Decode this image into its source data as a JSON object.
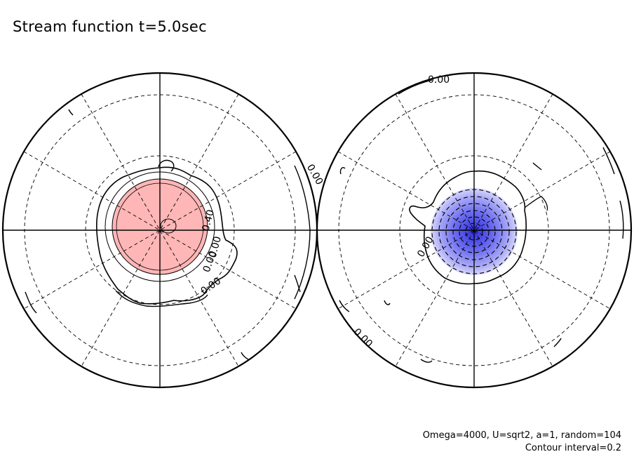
{
  "chart_data": {
    "type": "polar-contour",
    "title": "Stream function t=5.0sec",
    "annotations": {
      "params": "Omega=4000, U=sqrt2, a=1, random=104",
      "interval": "Contour interval=0.2"
    },
    "panels": [
      {
        "name": "left",
        "contour_labels": [
          "0.00",
          "0.40",
          "0.00",
          "0.00",
          "0.00"
        ],
        "positive_levels": [
          0.2,
          0.4,
          0.6,
          0.8
        ],
        "negative_levels": [],
        "fill_color": "#ffb6b6"
      },
      {
        "name": "right",
        "contour_labels": [
          "0.00",
          "0.00",
          "0.00"
        ],
        "positive_levels": [],
        "negative_levels": [
          -0.2,
          -0.4,
          -0.6,
          -0.8,
          -1.0,
          -1.2
        ],
        "fill_color": "#4a4ae8"
      }
    ],
    "contour_interval": 0.2
  }
}
